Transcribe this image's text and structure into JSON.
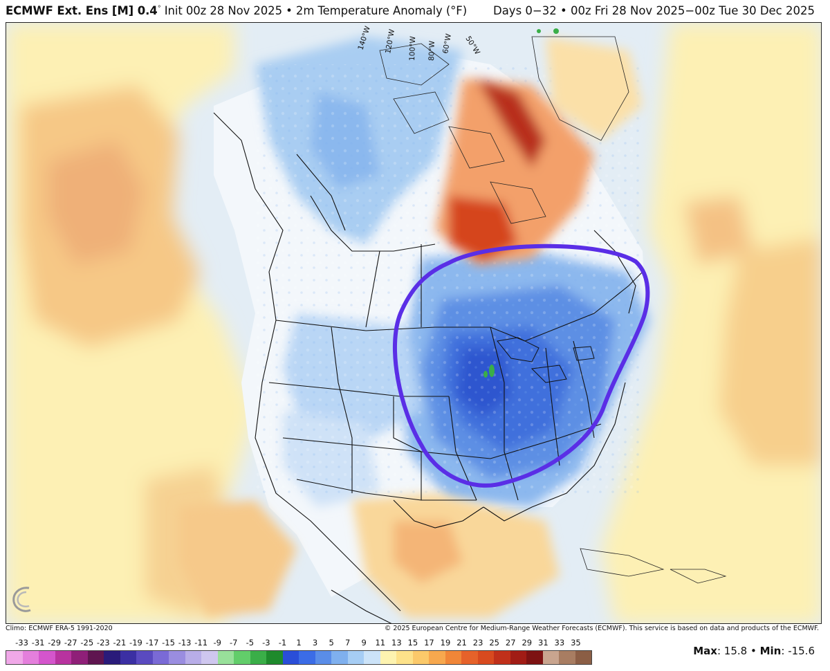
{
  "header": {
    "model": "ECMWF Ext. Ens [M] 0.4",
    "deg": "°",
    "init": "Init 00z 28 Nov 2025",
    "bullet": "•",
    "field": "2m Temperature Anomaly (°F)",
    "right": "Days 0−32 • 00z Fri 28 Nov 2025−00z Tue 30 Dec 2025"
  },
  "map": {
    "meridian_labels": [
      "140°W",
      "120°W",
      "100°W",
      "80°W",
      "60°W",
      "50°W"
    ],
    "annotation_color": "#5a2ee6",
    "logo": "WEATHERBELL"
  },
  "footer": {
    "climo": "Climo: ECMWF ERA-5 1991-2020",
    "copyright": "© 2025 European Centre for Medium-Range Weather Forecasts (ECMWF). This service is based on data and products of the ECMWF."
  },
  "colorbar": {
    "labels": [
      "-33",
      "-31",
      "-29",
      "-27",
      "-25",
      "-23",
      "-21",
      "-19",
      "-17",
      "-15",
      "-13",
      "-11",
      "-9",
      "-7",
      "-5",
      "-3",
      "-1",
      "1",
      "3",
      "5",
      "7",
      "9",
      "11",
      "13",
      "15",
      "17",
      "19",
      "21",
      "23",
      "25",
      "27",
      "29",
      "31",
      "33",
      "35"
    ],
    "colors": [
      "#f0a8e8",
      "#e47fdc",
      "#d455cc",
      "#b8339f",
      "#8f1f78",
      "#5f1550",
      "#2a1b7a",
      "#3b2fa3",
      "#5a4ac0",
      "#7a6ad6",
      "#9a8de0",
      "#b8ade8",
      "#cfc7ef",
      "#98e09a",
      "#62cd6a",
      "#3aae48",
      "#1e8a2c",
      "#2a4ed8",
      "#3b6ce6",
      "#5a8de8",
      "#7fb0ee",
      "#a6cdf4",
      "#cce3f8",
      "#fdf3b0",
      "#fde28a",
      "#fbc96a",
      "#f7a84e",
      "#f08638",
      "#e6622a",
      "#d84a1f",
      "#c0301a",
      "#a11c15",
      "#7d1212",
      "#c9a58f",
      "#a87d62",
      "#8b5e45"
    ]
  },
  "stats": {
    "max_label": "Max",
    "max": "15.8",
    "sep": "•",
    "min_label": "Min",
    "min": "-15.6"
  }
}
